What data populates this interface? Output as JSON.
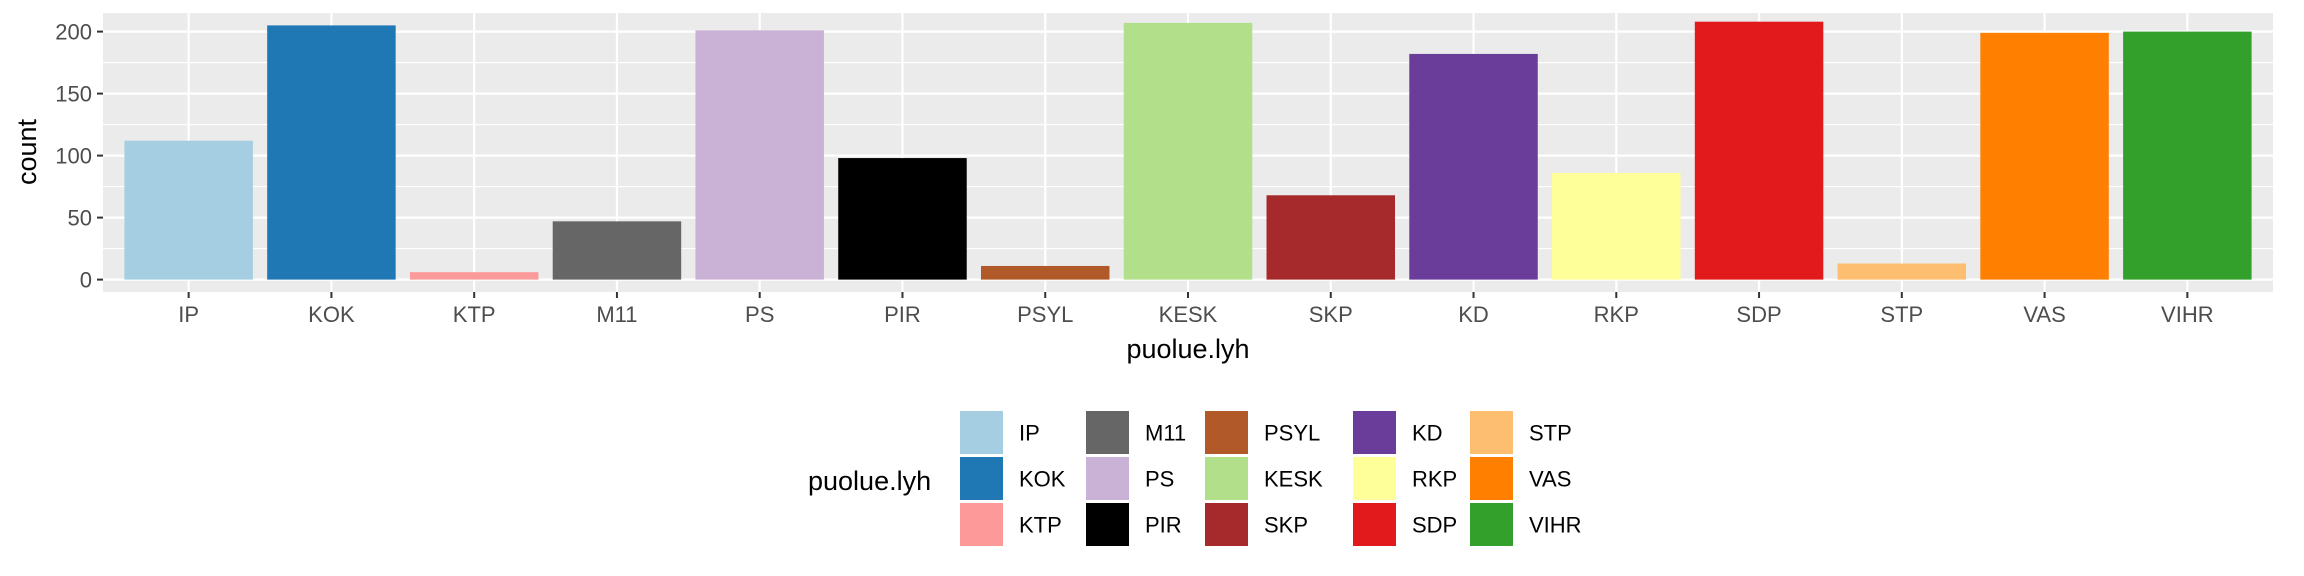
{
  "chart_data": {
    "type": "bar",
    "xlabel": "puolue.lyh",
    "ylabel": "count",
    "ylim": [
      -10,
      215
    ],
    "yticks": [
      0,
      50,
      100,
      150,
      200
    ],
    "grid": true,
    "legend_position": "bottom",
    "legend_title": "puolue.lyh",
    "categories": [
      "IP",
      "KOK",
      "KTP",
      "M11",
      "PS",
      "PIR",
      "PSYL",
      "KESK",
      "SKP",
      "KD",
      "RKP",
      "SDP",
      "STP",
      "VAS",
      "VIHR"
    ],
    "values": [
      112,
      205,
      6,
      47,
      201,
      98,
      11,
      207,
      68,
      182,
      86,
      208,
      13,
      199,
      200
    ],
    "colors": [
      "#A6CEE3",
      "#1F78B4",
      "#FB9A99",
      "#666666",
      "#CAB2D6",
      "#000000",
      "#B15928",
      "#B2DF8A",
      "#A6292B",
      "#6A3D9A",
      "#FFFF99",
      "#E31A1C",
      "#FDBF6F",
      "#FF7F00",
      "#33A02C"
    ],
    "legend_order": [
      "IP",
      "KOK",
      "KTP",
      "M11",
      "PS",
      "PIR",
      "PSYL",
      "KESK",
      "SKP",
      "KD",
      "RKP",
      "SDP",
      "STP",
      "VAS",
      "VIHR"
    ]
  }
}
